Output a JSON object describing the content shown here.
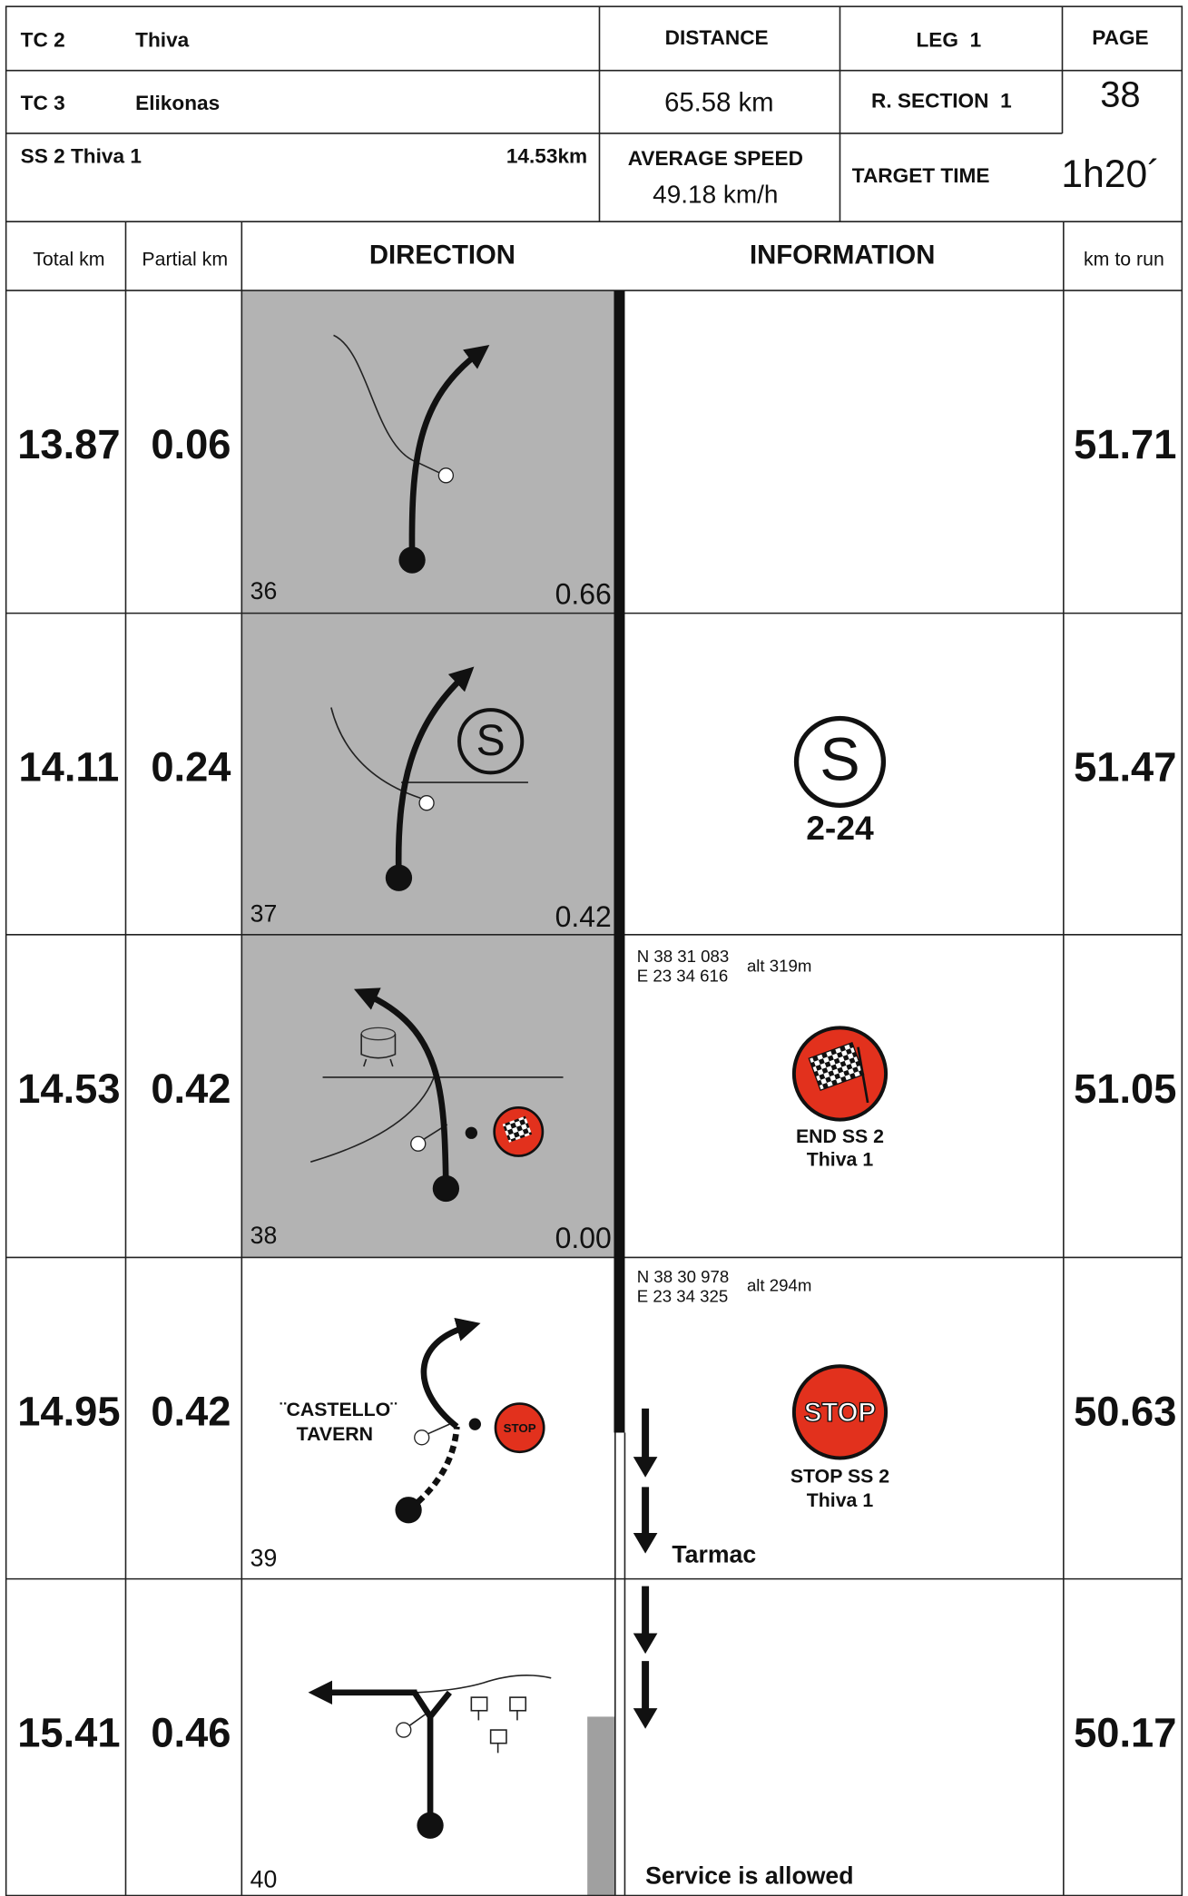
{
  "header": {
    "tc_from": {
      "label": "TC 2",
      "name": "Thiva"
    },
    "tc_to": {
      "label": "TC 3",
      "name": "Elikonas"
    },
    "stage": {
      "name": "SS 2 Thiva 1",
      "length": "14.53km"
    },
    "distance": {
      "label": "DISTANCE",
      "value": "65.58 km"
    },
    "leg": "LEG  1",
    "section": "R. SECTION  1",
    "page": {
      "label": "PAGE",
      "value": "38"
    },
    "average_speed": {
      "label": "AVERAGE SPEED",
      "value": "49.18 km/h"
    },
    "target_time": {
      "label": "TARGET TIME",
      "value": "1h20´"
    }
  },
  "columns": [
    "Total km",
    "Partial km",
    "DIRECTION",
    "INFORMATION",
    "km to run"
  ],
  "rows": [
    {
      "total": "13.87",
      "partial": "0.06",
      "number": "36",
      "distance_to_end": "0.66",
      "km_to_run": "51.71"
    },
    {
      "total": "14.11",
      "partial": "0.24",
      "number": "37",
      "distance_to_end": "0.42",
      "km_to_run": "51.47",
      "symbol": "S",
      "info": "2-24"
    },
    {
      "total": "14.53",
      "partial": "0.42",
      "number": "38",
      "distance_to_end": "0.00",
      "km_to_run": "51.05",
      "coords": [
        "N 38 31 083",
        "E 23 34 616"
      ],
      "altitude": "alt 319m",
      "caption": [
        "END SS 2",
        "Thiva 1"
      ]
    },
    {
      "total": "14.95",
      "partial": "0.42",
      "number": "39",
      "km_to_run": "50.63",
      "landmark": [
        "¨CASTELLO¨",
        "TAVERN"
      ],
      "sign": "STOP",
      "coords": [
        "N 38 30 978",
        "E 23 34 325"
      ],
      "altitude": "alt 294m",
      "caption": [
        "STOP SS 2",
        "Thiva 1"
      ],
      "note": "Tarmac"
    },
    {
      "total": "15.41",
      "partial": "0.46",
      "number": "40",
      "km_to_run": "50.17",
      "note": "Service is allowed"
    }
  ]
}
